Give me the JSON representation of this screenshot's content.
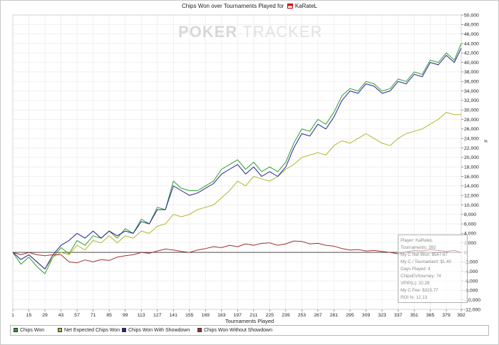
{
  "title_prefix": "Chips Won over Tournaments Played for",
  "title_player": "KaRateL",
  "watermark": {
    "poker": "POKER",
    "tracker": "TRACKER"
  },
  "y_side_label": "#",
  "stats": [
    "Player: KaRateL",
    "Tournaments: 392",
    "My C Net Won: $547.67",
    "My C / Tournament: $1.40",
    "Days Played: 4",
    "ChipsEV/tourney: 74",
    "VPIP(L): 32.28",
    "My C Fee: $315.77",
    "ROI %: 12.13"
  ],
  "chart_data": {
    "type": "line",
    "title": "Chips Won over Tournaments Played for KaRateL",
    "xlabel": "Tournaments Played",
    "ylabel": "#",
    "xlim": [
      1,
      392
    ],
    "ylim": [
      -12000,
      50000
    ],
    "x_ticks": [
      1,
      15,
      29,
      43,
      57,
      71,
      85,
      99,
      113,
      127,
      141,
      155,
      169,
      183,
      197,
      211,
      225,
      239,
      253,
      267,
      281,
      295,
      309,
      323,
      337,
      351,
      365,
      379,
      392
    ],
    "y_ticks": [
      50000,
      48000,
      46000,
      44000,
      42000,
      40000,
      38000,
      36000,
      34000,
      32000,
      30000,
      28000,
      26000,
      24000,
      22000,
      20000,
      18000,
      16000,
      14000,
      12000,
      10000,
      8000,
      6000,
      4000,
      2000,
      0,
      -2000,
      -4000,
      -6000,
      -8000,
      -10000,
      -12000
    ],
    "y_tick_labels": [
      "50,000",
      "48,000",
      "46,000",
      "44,000",
      "42,000",
      "40,000",
      "38,000",
      "36,000",
      "34,000",
      "32,000",
      "30,000",
      "28,000",
      "26,000",
      "24,000",
      "22,000",
      "20,000",
      "18,000",
      "16,000",
      "14,000",
      "12,000",
      "10,000",
      "8,000",
      "6,000",
      "4,000",
      "2,000",
      "0",
      "-2,000",
      "-4,000",
      "-6,000",
      "-8,000",
      "-10,000",
      "-12,000"
    ],
    "x_tick_labels": [
      "1",
      "15",
      "29",
      "43",
      "57",
      "71",
      "85",
      "99",
      "113",
      "127",
      "141",
      "155",
      "169",
      "183",
      "197",
      "211",
      "225",
      "239",
      "253",
      "267",
      "281",
      "295",
      "309",
      "323",
      "337",
      "351",
      "365",
      "379",
      "392"
    ],
    "grid": true,
    "legend_position": "bottom",
    "series": [
      {
        "name": "Chips Won",
        "color": "#2e9e2e",
        "x": [
          1,
          8,
          15,
          22,
          29,
          36,
          43,
          50,
          57,
          64,
          71,
          78,
          85,
          92,
          99,
          106,
          113,
          120,
          127,
          134,
          141,
          148,
          155,
          162,
          169,
          176,
          183,
          190,
          197,
          204,
          211,
          218,
          225,
          232,
          239,
          246,
          253,
          260,
          267,
          274,
          281,
          288,
          295,
          302,
          309,
          316,
          323,
          330,
          337,
          344,
          351,
          358,
          365,
          372,
          379,
          386,
          392
        ],
        "y": [
          0,
          -2500,
          -1000,
          -3000,
          -4500,
          -1000,
          1000,
          -300,
          2500,
          1500,
          3500,
          3000,
          4500,
          3000,
          5000,
          4000,
          7000,
          6000,
          9500,
          9000,
          15000,
          13500,
          13000,
          13000,
          14000,
          15000,
          17500,
          18500,
          19500,
          17500,
          19000,
          17000,
          18000,
          17000,
          19000,
          23000,
          26000,
          25500,
          28000,
          27000,
          29500,
          33000,
          34500,
          34000,
          36000,
          35500,
          34000,
          34500,
          36500,
          36000,
          38000,
          37500,
          40500,
          40000,
          42000,
          40500,
          44000
        ]
      },
      {
        "name": "Net Expected Chips Won",
        "color": "#b5b52c",
        "x": [
          1,
          8,
          15,
          22,
          29,
          36,
          43,
          50,
          57,
          64,
          71,
          78,
          85,
          92,
          99,
          106,
          113,
          120,
          127,
          134,
          141,
          148,
          155,
          162,
          169,
          176,
          183,
          190,
          197,
          204,
          211,
          218,
          225,
          232,
          239,
          246,
          253,
          260,
          267,
          274,
          281,
          288,
          295,
          302,
          309,
          316,
          323,
          330,
          337,
          344,
          351,
          358,
          365,
          372,
          379,
          386,
          392
        ],
        "y": [
          0,
          -1500,
          -500,
          -2000,
          -3500,
          -1000,
          0,
          -500,
          1500,
          500,
          2500,
          2000,
          3500,
          2000,
          3500,
          3000,
          4500,
          4000,
          5500,
          6000,
          8000,
          7500,
          8000,
          9000,
          9500,
          10000,
          11500,
          13000,
          15000,
          14000,
          16000,
          15500,
          15000,
          16000,
          17500,
          18500,
          20000,
          20500,
          21000,
          20500,
          22500,
          23500,
          23000,
          24000,
          25000,
          24000,
          23000,
          22500,
          24000,
          25000,
          25500,
          26000,
          27000,
          28000,
          29500,
          29000,
          29000
        ]
      },
      {
        "name": "Chips Won With Showdown",
        "color": "#23239a",
        "x": [
          1,
          8,
          15,
          22,
          29,
          36,
          43,
          50,
          57,
          64,
          71,
          78,
          85,
          92,
          99,
          106,
          113,
          120,
          127,
          134,
          141,
          148,
          155,
          162,
          169,
          176,
          183,
          190,
          197,
          204,
          211,
          218,
          225,
          232,
          239,
          246,
          253,
          260,
          267,
          274,
          281,
          288,
          295,
          302,
          309,
          316,
          323,
          330,
          337,
          344,
          351,
          358,
          365,
          372,
          379,
          386,
          392
        ],
        "y": [
          0,
          -1500,
          -500,
          -2000,
          -3500,
          -500,
          1500,
          2500,
          4000,
          3000,
          4500,
          3000,
          4500,
          3500,
          4500,
          4000,
          6500,
          6000,
          9000,
          9000,
          14000,
          13000,
          12000,
          12500,
          13500,
          14500,
          16500,
          17500,
          18500,
          16500,
          18000,
          16000,
          17000,
          16000,
          18000,
          22000,
          25000,
          24500,
          27000,
          26000,
          28500,
          32000,
          34000,
          33500,
          35500,
          35000,
          33500,
          34000,
          36000,
          35500,
          37500,
          37000,
          40000,
          39500,
          41500,
          40000,
          43000
        ]
      },
      {
        "name": "Chips Won Without Showdown",
        "color": "#a33030",
        "x": [
          1,
          8,
          15,
          22,
          29,
          36,
          43,
          50,
          57,
          64,
          71,
          78,
          85,
          92,
          99,
          106,
          113,
          120,
          127,
          134,
          141,
          148,
          155,
          162,
          169,
          176,
          183,
          190,
          197,
          204,
          211,
          218,
          225,
          232,
          239,
          246,
          253,
          260,
          267,
          274,
          281,
          288,
          295,
          302,
          309,
          316,
          323,
          330,
          337,
          344,
          351,
          358,
          365,
          372,
          379,
          386,
          392
        ],
        "y": [
          0,
          -500,
          0,
          -500,
          -700,
          -500,
          -500,
          -2000,
          -2200,
          -1600,
          -2000,
          -1500,
          -1700,
          -1000,
          -700,
          -500,
          0,
          -200,
          300,
          700,
          500,
          200,
          0,
          500,
          800,
          1200,
          1000,
          1500,
          1200,
          1800,
          1500,
          1900,
          2000,
          1500,
          1800,
          2400,
          2300,
          1800,
          1900,
          1500,
          1300,
          800,
          500,
          600,
          300,
          400,
          200,
          0,
          -300,
          100,
          400,
          300,
          600,
          400,
          200,
          400,
          0
        ]
      }
    ]
  }
}
